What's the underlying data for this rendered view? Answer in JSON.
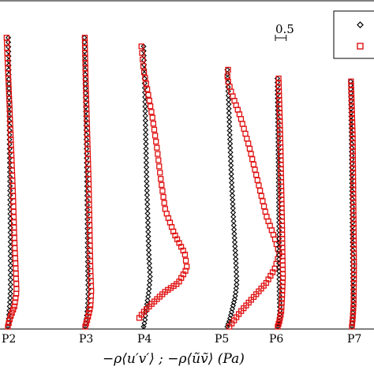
{
  "chart_data": {
    "type": "scatter",
    "xlabel": "−ρ⟨u′v′⟩ ; −ρ⟨ũṽ⟩  (Pa)",
    "scale_bar_label": "0.5",
    "scale_bar_value": 0.5,
    "y_range": [
      0,
      1
    ],
    "colors": {
      "series_1": "#000000",
      "series_2": "#e01010"
    },
    "stations": [
      {
        "label": "P2",
        "top": 0.99,
        "series_1": [
          [
            0.0,
            0.0
          ],
          [
            0.02,
            0.03
          ],
          [
            0.04,
            0.07
          ],
          [
            0.06,
            0.12
          ],
          [
            0.06,
            0.2
          ],
          [
            0.06,
            0.3
          ],
          [
            0.05,
            0.45
          ],
          [
            0.04,
            0.6
          ],
          [
            0.03,
            0.75
          ],
          [
            0.02,
            0.88
          ],
          [
            0.01,
            0.99
          ]
        ],
        "series_2": [
          [
            0.0,
            0.0
          ],
          [
            0.05,
            0.03
          ],
          [
            0.15,
            0.07
          ],
          [
            0.2,
            0.12
          ],
          [
            0.18,
            0.2
          ],
          [
            0.15,
            0.3
          ],
          [
            0.12,
            0.45
          ],
          [
            0.08,
            0.6
          ],
          [
            0.04,
            0.75
          ],
          [
            0.0,
            0.88
          ],
          [
            -0.03,
            0.99
          ]
        ]
      },
      {
        "label": "P3",
        "top": 0.99,
        "series_1": [
          [
            0.0,
            0.0
          ],
          [
            0.03,
            0.03
          ],
          [
            0.06,
            0.07
          ],
          [
            0.07,
            0.12
          ],
          [
            0.06,
            0.2
          ],
          [
            0.05,
            0.35
          ],
          [
            0.04,
            0.5
          ],
          [
            0.02,
            0.7
          ],
          [
            0.0,
            0.85
          ],
          [
            -0.02,
            0.99
          ]
        ],
        "series_2": [
          [
            0.0,
            0.0
          ],
          [
            0.06,
            0.03
          ],
          [
            0.12,
            0.07
          ],
          [
            0.14,
            0.12
          ],
          [
            0.12,
            0.2
          ],
          [
            0.1,
            0.35
          ],
          [
            0.08,
            0.5
          ],
          [
            0.04,
            0.7
          ],
          [
            0.01,
            0.85
          ],
          [
            -0.01,
            0.99
          ]
        ]
      },
      {
        "label": "P4",
        "top": 0.96,
        "series_1": [
          [
            0.0,
            0.0
          ],
          [
            0.03,
            0.02
          ],
          [
            0.05,
            0.05
          ],
          [
            0.08,
            0.08
          ],
          [
            0.12,
            0.12
          ],
          [
            0.15,
            0.17
          ],
          [
            0.12,
            0.25
          ],
          [
            0.1,
            0.35
          ],
          [
            0.07,
            0.5
          ],
          [
            0.05,
            0.65
          ],
          [
            0.03,
            0.8
          ],
          [
            0.0,
            0.96
          ]
        ],
        "series_2": [
          [
            -0.1,
            0.03
          ],
          [
            0.0,
            0.05
          ],
          [
            0.2,
            0.08
          ],
          [
            0.5,
            0.12
          ],
          [
            0.8,
            0.15
          ],
          [
            1.0,
            0.2
          ],
          [
            0.95,
            0.25
          ],
          [
            0.7,
            0.32
          ],
          [
            0.5,
            0.4
          ],
          [
            0.4,
            0.5
          ],
          [
            0.3,
            0.62
          ],
          [
            0.2,
            0.72
          ],
          [
            0.1,
            0.8
          ],
          [
            0.0,
            0.88
          ],
          [
            -0.05,
            0.96
          ]
        ]
      },
      {
        "label": "P5",
        "top": 0.88,
        "series_1": [
          [
            0.0,
            0.0
          ],
          [
            0.05,
            0.02
          ],
          [
            0.1,
            0.05
          ],
          [
            0.18,
            0.1
          ],
          [
            0.22,
            0.15
          ],
          [
            0.2,
            0.22
          ],
          [
            0.15,
            0.35
          ],
          [
            0.1,
            0.5
          ],
          [
            0.06,
            0.65
          ],
          [
            0.03,
            0.78
          ],
          [
            0.0,
            0.88
          ]
        ],
        "series_2": [
          [
            0.05,
            0.0
          ],
          [
            0.15,
            0.02
          ],
          [
            0.3,
            0.05
          ],
          [
            0.6,
            0.1
          ],
          [
            0.9,
            0.15
          ],
          [
            1.1,
            0.2
          ],
          [
            1.2,
            0.25
          ],
          [
            1.1,
            0.3
          ],
          [
            0.9,
            0.38
          ],
          [
            0.7,
            0.5
          ],
          [
            0.5,
            0.62
          ],
          [
            0.3,
            0.72
          ],
          [
            0.1,
            0.8
          ],
          [
            0.0,
            0.85
          ],
          [
            0.02,
            0.88
          ]
        ]
      },
      {
        "label": "P6",
        "top": 0.85,
        "series_1": [
          [
            0.0,
            0.0
          ],
          [
            0.03,
            0.02
          ],
          [
            0.05,
            0.05
          ],
          [
            0.04,
            0.1
          ],
          [
            0.03,
            0.2
          ],
          [
            0.03,
            0.35
          ],
          [
            0.02,
            0.5
          ],
          [
            0.01,
            0.65
          ],
          [
            0.0,
            0.75
          ],
          [
            -0.01,
            0.85
          ]
        ],
        "series_2": [
          [
            0.0,
            0.0
          ],
          [
            0.04,
            0.02
          ],
          [
            0.08,
            0.05
          ],
          [
            0.1,
            0.1
          ],
          [
            0.12,
            0.17
          ],
          [
            0.11,
            0.25
          ],
          [
            0.1,
            0.35
          ],
          [
            0.08,
            0.5
          ],
          [
            0.06,
            0.65
          ],
          [
            0.04,
            0.75
          ],
          [
            0.02,
            0.85
          ]
        ]
      },
      {
        "label": "P7",
        "top": 0.84,
        "series_1": [
          [
            0.0,
            0.0
          ],
          [
            0.02,
            0.03
          ],
          [
            0.03,
            0.08
          ],
          [
            0.02,
            0.2
          ],
          [
            0.01,
            0.35
          ],
          [
            0.0,
            0.5
          ],
          [
            -0.01,
            0.65
          ],
          [
            -0.02,
            0.75
          ],
          [
            -0.03,
            0.84
          ]
        ],
        "series_2": [
          [
            0.0,
            0.0
          ],
          [
            0.02,
            0.03
          ],
          [
            0.04,
            0.08
          ],
          [
            0.05,
            0.2
          ],
          [
            0.04,
            0.35
          ],
          [
            0.03,
            0.5
          ],
          [
            0.02,
            0.65
          ],
          [
            0.0,
            0.75
          ],
          [
            -0.02,
            0.84
          ]
        ]
      }
    ]
  }
}
